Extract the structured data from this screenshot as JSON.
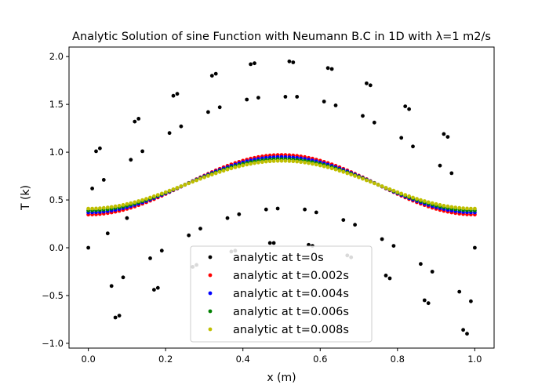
{
  "chart_data": {
    "type": "scatter",
    "title": "Analytic Solution of sine Function with Neumann B.C in 1D with λ=1 m2/s",
    "xlabel": "x (m)",
    "ylabel": "T (k)",
    "xlim": [
      -0.05,
      1.05
    ],
    "ylim": [
      -1.05,
      2.1
    ],
    "xticks": [
      0.0,
      0.2,
      0.4,
      0.6,
      0.8,
      1.0
    ],
    "xtick_labels": [
      "0.0",
      "0.2",
      "0.4",
      "0.6",
      "0.8",
      "1.0"
    ],
    "yticks": [
      -1.0,
      -0.5,
      0.0,
      0.5,
      1.0,
      1.5,
      2.0
    ],
    "ytick_labels": [
      "−1.0",
      "−0.5",
      "0.0",
      "0.5",
      "1.0",
      "1.5",
      "2.0"
    ],
    "grid": false,
    "legend_position": "lower-center",
    "series": [
      {
        "name": "analytic at t=0s",
        "color": "#000000",
        "x": [
          0.0,
          0.01,
          0.02,
          0.03,
          0.04,
          0.05,
          0.06,
          0.07,
          0.08,
          0.09,
          0.1,
          0.11,
          0.12,
          0.13,
          0.14,
          0.16,
          0.17,
          0.18,
          0.19,
          0.21,
          0.22,
          0.23,
          0.24,
          0.26,
          0.27,
          0.28,
          0.29,
          0.31,
          0.32,
          0.33,
          0.34,
          0.36,
          0.37,
          0.38,
          0.39,
          0.41,
          0.42,
          0.43,
          0.44,
          0.46,
          0.47,
          0.48,
          0.49,
          0.51,
          0.52,
          0.53,
          0.54,
          0.56,
          0.57,
          0.58,
          0.59,
          0.61,
          0.62,
          0.63,
          0.64,
          0.66,
          0.67,
          0.68,
          0.69,
          0.71,
          0.72,
          0.73,
          0.74,
          0.76,
          0.77,
          0.78,
          0.79,
          0.81,
          0.82,
          0.83,
          0.84,
          0.86,
          0.87,
          0.88,
          0.89,
          0.91,
          0.92,
          0.93,
          0.94,
          0.96,
          0.97,
          0.98,
          0.99,
          1.0
        ],
        "y": [
          0.0,
          0.62,
          1.01,
          1.04,
          0.71,
          0.15,
          -0.4,
          -0.73,
          -0.71,
          -0.31,
          0.31,
          0.92,
          1.32,
          1.35,
          1.01,
          -0.11,
          -0.44,
          -0.42,
          -0.03,
          1.2,
          1.59,
          1.61,
          1.27,
          0.13,
          -0.2,
          -0.18,
          0.2,
          1.42,
          1.8,
          1.82,
          1.47,
          0.31,
          -0.04,
          -0.03,
          0.35,
          1.55,
          1.92,
          1.93,
          1.57,
          0.4,
          0.05,
          0.05,
          0.41,
          1.58,
          1.95,
          1.94,
          1.58,
          0.4,
          0.03,
          0.02,
          0.37,
          1.53,
          1.88,
          1.87,
          1.49,
          0.29,
          -0.08,
          -0.1,
          0.24,
          1.38,
          1.72,
          1.7,
          1.31,
          0.09,
          -0.29,
          -0.32,
          0.02,
          1.15,
          1.48,
          1.45,
          1.06,
          -0.17,
          -0.55,
          -0.58,
          -0.25,
          0.86,
          1.19,
          1.16,
          0.78,
          -0.46,
          -0.86,
          -0.9,
          -0.56,
          0.0
        ]
      },
      {
        "name": "analytic at t=0.002s",
        "color": "#ff0000",
        "amp": 0.312,
        "dc": 0.659
      },
      {
        "name": "analytic at t=0.004s",
        "color": "#0000ff",
        "amp": 0.29,
        "dc": 0.659
      },
      {
        "name": "analytic at t=0.006s",
        "color": "#008000",
        "amp": 0.269,
        "dc": 0.659
      },
      {
        "name": "analytic at t=0.008s",
        "color": "#bfbf00",
        "amp": 0.25,
        "dc": 0.659
      }
    ]
  }
}
